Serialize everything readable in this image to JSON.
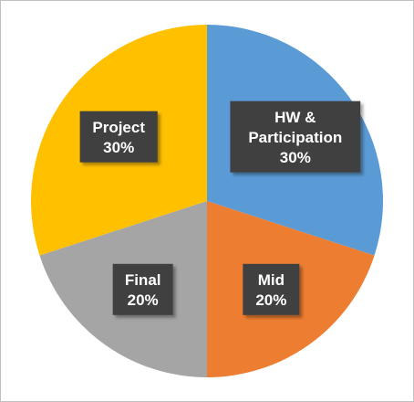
{
  "chart_data": {
    "type": "pie",
    "title": "",
    "start_angle_deg": 0,
    "direction": "clockwise",
    "legend": "none",
    "slices": [
      {
        "label_lines": [
          "HW &",
          "Participation"
        ],
        "percent_label": "30%",
        "value": 30,
        "color": "#5b9bd5"
      },
      {
        "label_lines": [
          "Mid"
        ],
        "percent_label": "20%",
        "value": 20,
        "color": "#ed7d31"
      },
      {
        "label_lines": [
          "Final"
        ],
        "percent_label": "20%",
        "value": 20,
        "color": "#a5a5a5"
      },
      {
        "label_lines": [
          "Project"
        ],
        "percent_label": "30%",
        "value": 30,
        "color": "#ffc000"
      }
    ],
    "label_style": {
      "box_color": "#404040",
      "text_color": "#ffffff"
    }
  }
}
